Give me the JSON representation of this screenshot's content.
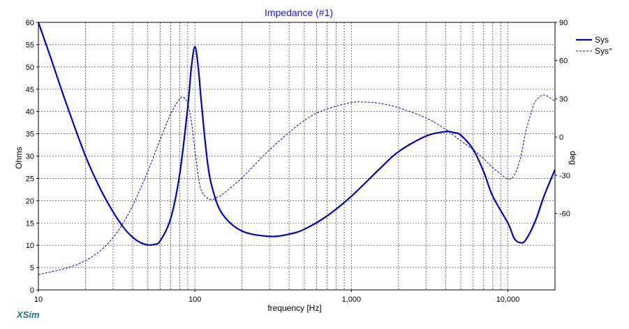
{
  "app": {
    "brand": "XSim"
  },
  "chart_data": {
    "type": "line",
    "title": "Impedance (#1)",
    "xlabel": "frequency [Hz]",
    "ylabel_left": "Ohms",
    "ylabel_right": "deg",
    "x_scale": "log",
    "xlim": [
      10,
      20000
    ],
    "ylim_left": [
      0,
      60
    ],
    "ylim_right": [
      -120,
      90
    ],
    "grid": true,
    "legend_position": "top-right",
    "x_ticks": [
      {
        "value": 10,
        "label": "10"
      },
      {
        "value": 100,
        "label": "100"
      },
      {
        "value": 1000,
        "label": "1,000"
      },
      {
        "value": 10000,
        "label": "10,000"
      }
    ],
    "y_left_ticks": [
      0,
      5,
      10,
      15,
      20,
      25,
      30,
      35,
      40,
      45,
      50,
      55,
      60
    ],
    "y_right_ticks": [
      {
        "value": 90,
        "label": "90"
      },
      {
        "value": 60,
        "label": "60"
      },
      {
        "value": 30,
        "label": "30"
      },
      {
        "value": 0,
        "label": "0"
      },
      {
        "value": -30,
        "label": "-30"
      },
      {
        "value": -60,
        "label": "-60"
      }
    ],
    "series": [
      {
        "name": "Sys",
        "axis": "left",
        "style": "solid",
        "color": "#0000cc",
        "x": [
          10,
          12,
          15,
          20,
          25,
          30,
          35,
          40,
          45,
          50,
          55,
          60,
          70,
          80,
          90,
          95,
          100,
          105,
          110,
          120,
          130,
          150,
          200,
          300,
          400,
          500,
          700,
          1000,
          1500,
          2000,
          3000,
          4000,
          4500,
          5000,
          6000,
          7000,
          8000,
          10000,
          11000,
          12000,
          13000,
          15000,
          17000,
          20000
        ],
        "values": [
          60,
          52,
          42,
          30,
          22.5,
          17.5,
          14,
          11.8,
          10.6,
          10.1,
          10.2,
          11,
          16,
          26,
          41,
          50,
          54.5,
          50,
          42,
          29,
          22.5,
          17,
          13.2,
          12,
          12.5,
          13.6,
          16.6,
          21,
          27,
          31,
          34.5,
          35.5,
          35.3,
          34.7,
          31.5,
          26.5,
          21,
          15,
          11.5,
          10.6,
          11.2,
          15.5,
          21,
          27
        ]
      },
      {
        "name": "Sys°",
        "axis": "right",
        "style": "dashed",
        "color": "#0000cc",
        "x": [
          10,
          15,
          20,
          25,
          30,
          35,
          40,
          45,
          50,
          55,
          60,
          70,
          80,
          85,
          90,
          95,
          100,
          105,
          110,
          120,
          130,
          140,
          150,
          200,
          300,
          500,
          700,
          1000,
          1200,
          1500,
          2000,
          3000,
          4000,
          5000,
          6000,
          7000,
          8000,
          9000,
          10000,
          11000,
          12000,
          13000,
          14000,
          15000,
          17000,
          20000
        ],
        "values": [
          -108,
          -103,
          -97,
          -89,
          -79,
          -67,
          -54,
          -40,
          -27,
          -14,
          -2,
          18,
          30,
          31,
          26,
          12,
          -10,
          -30,
          -42,
          -48,
          -49,
          -47,
          -45,
          -32,
          -10,
          13,
          22,
          27,
          27.5,
          26.5,
          23,
          15,
          6,
          -3,
          -10,
          -17,
          -24,
          -29,
          -33,
          -30,
          -17,
          4,
          18,
          28,
          33,
          28
        ]
      }
    ]
  }
}
